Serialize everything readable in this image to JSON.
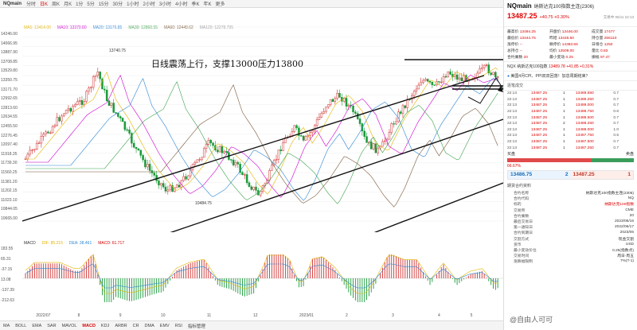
{
  "toolbar": {
    "symbol": "NQmain",
    "items": [
      "分时",
      "日K",
      "周K",
      "月K",
      "1分",
      "5分",
      "15分",
      "30分",
      "1小时",
      "2小时",
      "3小时",
      "4小时",
      "季K",
      "年K",
      "更多"
    ],
    "active_index": 1
  },
  "ma_legend": [
    {
      "label": "MA5: 13414.00",
      "color": "#e3b400"
    },
    {
      "label": "MA10: 13370.80",
      "color": "#d000d0"
    },
    {
      "label": "MA20: 13176.85",
      "color": "#2b86d6"
    },
    {
      "label": "MA30: 12860.55",
      "color": "#3fa34d"
    },
    {
      "label": "MA60: 12449.62",
      "color": "#7a5a3a"
    },
    {
      "label": "MA120: 12278.795",
      "color": "#999999"
    }
  ],
  "price_ticks": [
    "14246.00",
    "14066.95",
    "13887.90",
    "13708.85",
    "13529.80",
    "13350.75",
    "13171.70",
    "12992.65",
    "12813.60",
    "12634.55",
    "12455.50",
    "12276.45",
    "12097.40",
    "11918.35",
    "11739.30",
    "11560.25",
    "11381.20",
    "11202.15",
    "11023.10",
    "10844.05",
    "10665.00"
  ],
  "annotation": "日线震荡上行，支撑13000压力13800",
  "chart_labels": {
    "high_mark": "13740.75",
    "low_mark": "10484.75"
  },
  "macd": {
    "legend": [
      {
        "label": "MACD",
        "color": "#333333"
      },
      {
        "label": "DIF: 85.215",
        "color": "#e3b400"
      },
      {
        "label": "DEA: 38.461",
        "color": "#2b86d6"
      },
      {
        "label": "MACD: 61.717",
        "color": "#d00000"
      }
    ],
    "ticks": [
      "183.55",
      "65.31",
      "-37.15",
      "13.08",
      "-137.39",
      "-212.63"
    ]
  },
  "time_axis": [
    "2022/07",
    "8",
    "9",
    "10",
    "11",
    "12",
    "2023/01",
    "2",
    "3",
    "4",
    "5"
  ],
  "time_axis_pos": [
    0.03,
    0.12,
    0.21,
    0.3,
    0.4,
    0.5,
    0.6,
    0.7,
    0.8,
    0.9,
    0.97
  ],
  "bottom_bar": {
    "items": [
      "MA",
      "BOLL",
      "EMA",
      "SAR",
      "MAVOL",
      "MACD",
      "KDJ",
      "ARBR",
      "CR",
      "DMA",
      "EMV",
      "RSI",
      "指标管理"
    ],
    "active_index": 5
  },
  "panel": {
    "code": "NQmain",
    "name": "纳斯达克100指数主连(2306)",
    "price": "13487.25",
    "change": "+40.75 +0.30%",
    "time": "交易中 05/11 22:13",
    "stats": [
      {
        "k": "最高价",
        "v": "13494.25"
      },
      {
        "k": "开盘价",
        "v": "13446.00"
      },
      {
        "k": "成交量",
        "v": "17477"
      },
      {
        "k": "最低价",
        "v": "13444.75"
      },
      {
        "k": "昨结",
        "v": "13446.50"
      },
      {
        "k": "持仓量",
        "v": "256110"
      },
      {
        "k": "涨停价",
        "v": "--"
      },
      {
        "k": "跌停价",
        "v": "14383.55"
      },
      {
        "k": "日增仓",
        "v": "1250"
      },
      {
        "k": "总持仓",
        "v": "--"
      },
      {
        "k": "均价",
        "v": "12509.00"
      },
      {
        "k": "量比",
        "v": "0.83"
      },
      {
        "k": "合约乘数",
        "v": "20"
      },
      {
        "k": "最小变动",
        "v": "0.25"
      },
      {
        "k": "振幅",
        "v": "97.47"
      }
    ],
    "related": {
      "name": "NQX 纳斯达克100指数",
      "price": "13489.78",
      "change": "+41.85 +0.31%"
    },
    "news": "美国4月CPI、PPI双双回落！加息周期结束？",
    "tick_title": "逐笔成交",
    "ticks": [
      {
        "t": "22:13",
        "p": "13487.25",
        "c": "1",
        "pr": "13489.550",
        "v": "0.7"
      },
      {
        "t": "22:13",
        "p": "13487.25",
        "c": "1",
        "pr": "13489.250",
        "v": "0.7"
      },
      {
        "t": "22:13",
        "p": "13487.25",
        "c": "1",
        "pr": "13489.000",
        "v": "0.7"
      },
      {
        "t": "22:13",
        "p": "13487.25",
        "c": "1",
        "pr": "13488.750",
        "v": "0.6"
      },
      {
        "t": "22:13",
        "p": "13487.25",
        "c": "1",
        "pr": "13488.500",
        "v": "0.7"
      },
      {
        "t": "22:13",
        "p": "13487.25",
        "c": "2",
        "pr": "13488.250",
        "v": "0.7"
      },
      {
        "t": "22:13",
        "p": "13487.25",
        "c": "1",
        "pr": "13488.000",
        "v": "1.0"
      },
      {
        "t": "22:13",
        "p": "13487.25",
        "c": "1",
        "pr": "13487.750",
        "v": "0.5"
      },
      {
        "t": "22:13",
        "p": "13487.25",
        "c": "1",
        "pr": "13487.500",
        "v": "0.7"
      },
      {
        "t": "22:13",
        "p": "13487.25",
        "c": "1",
        "pr": "13487.250",
        "v": "0.7"
      }
    ],
    "buy_label": "买盘",
    "sell_label": "卖盘",
    "buy_pct": "66.67%",
    "buy_fraction": 0.6667,
    "bid_price": "13486.75",
    "bid_qty": "2",
    "ask_price": "13487.25",
    "ask_qty": "1",
    "contract_title": "期货合约资料",
    "contract": [
      {
        "k": "合约名称",
        "v": "纳斯达克100指数主连(2306)"
      },
      {
        "k": "合约代码",
        "v": "NQ"
      },
      {
        "k": "标的",
        "v": "纳斯达克100指数",
        "link": true
      },
      {
        "k": "交易所",
        "v": "CME"
      },
      {
        "k": "合约乘数",
        "v": "20"
      },
      {
        "k": "最后交易日",
        "v": "2023/06/16"
      },
      {
        "k": "第一通知日",
        "v": "2022/06/17"
      },
      {
        "k": "合约到期日",
        "v": "2023/06"
      },
      {
        "k": "交割方式",
        "v": "现金交割"
      },
      {
        "k": "货币",
        "v": "USD"
      },
      {
        "k": "最小变动价位",
        "v": "0.25(指数点)"
      },
      {
        "k": "交易时间",
        "v": "周日-周五"
      },
      {
        "k": "涨跌幅限制",
        "v": "7%(T-1)"
      }
    ]
  },
  "watermark": "@自由人可可"
}
